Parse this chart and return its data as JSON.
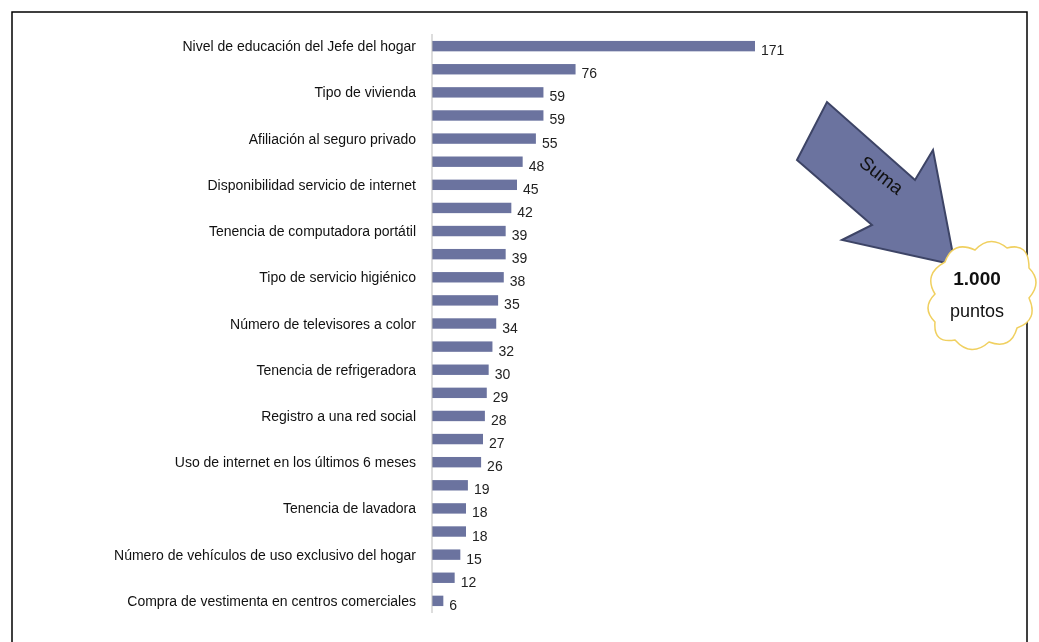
{
  "chart_data": {
    "type": "bar",
    "orientation": "horizontal",
    "data_labels": true,
    "color": "#6b739f",
    "categories": [
      "Nivel de educación del Jefe del hogar",
      null,
      "Tipo de vivienda",
      null,
      "Afiliación al seguro privado",
      null,
      "Disponibilidad servicio de internet",
      null,
      "Tenencia de computadora portátil",
      null,
      "Tipo de servicio higiénico",
      null,
      "Número de televisores a color",
      null,
      "Tenencia de refrigeradora",
      null,
      "Registro a una red social",
      null,
      "Uso de internet en los últimos 6 meses",
      null,
      "Tenencia de lavadora",
      null,
      "Número de vehículos de uso exclusivo del hogar",
      null,
      "Compra de vestimenta en centros comerciales"
    ],
    "values": [
      171,
      76,
      59,
      59,
      55,
      48,
      45,
      42,
      39,
      39,
      38,
      35,
      34,
      32,
      30,
      29,
      28,
      27,
      26,
      19,
      18,
      18,
      15,
      12,
      6
    ],
    "annotations": [
      "Suma",
      "1.000",
      "puntos"
    ]
  }
}
